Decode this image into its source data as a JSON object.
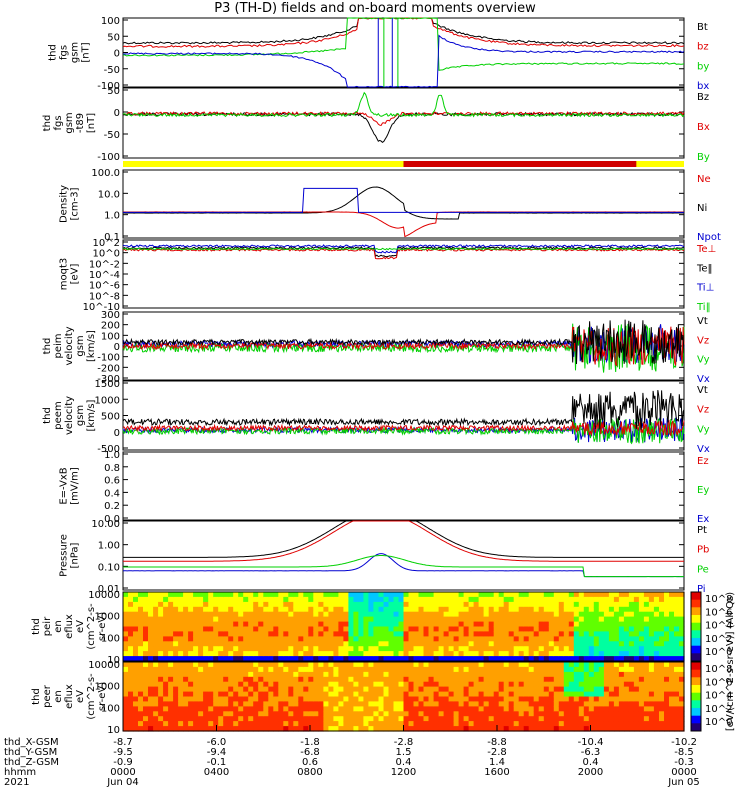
{
  "title": "P3 (TH-D) fields and on-board moments overview",
  "colors": {
    "black": "#000000",
    "red": "#e00000",
    "green": "#00d000",
    "blue": "#0000d0",
    "yellow": "#ffff00",
    "darkred": "#d00000"
  },
  "chart_data": [
    {
      "type": "line",
      "panel": "fgs_gsm",
      "ylabel": [
        "thd",
        "fgs",
        "gsm",
        "[nT]"
      ],
      "yticks": [
        "100",
        "50",
        "0",
        "-50",
        "-100"
      ],
      "ylim": [
        -100,
        100
      ],
      "legend": [
        {
          "name": "Bt",
          "color": "#000000"
        },
        {
          "name": "bz",
          "color": "#e00000"
        },
        {
          "name": "by",
          "color": "#00d000"
        },
        {
          "name": "bx",
          "color": "#0000d0"
        }
      ]
    },
    {
      "type": "line",
      "panel": "fgs_gsm_t89",
      "ylabel": [
        "thd",
        "fgs",
        "gsm",
        "-t89",
        "[nT]"
      ],
      "yticks": [
        "50",
        "0",
        "-50",
        "-100"
      ],
      "ylim": [
        -125,
        75
      ],
      "legend": [
        {
          "name": "Bz",
          "color": "#000000"
        },
        {
          "name": "Bx",
          "color": "#e00000"
        },
        {
          "name": "By",
          "color": "#00d000"
        }
      ]
    },
    {
      "type": "line",
      "panel": "density",
      "ylabel": [
        "Density",
        "[cm-3]"
      ],
      "yticks": [
        "100.0",
        "10.0",
        "1.0",
        "0.1"
      ],
      "scale": "log",
      "legend": [
        {
          "name": "Ne",
          "color": "#e00000"
        },
        {
          "name": "Ni",
          "color": "#000000"
        },
        {
          "name": "Npot",
          "color": "#0000d0"
        }
      ]
    },
    {
      "type": "line",
      "panel": "temperature",
      "ylabel": [
        "moqt3",
        "[eV]"
      ],
      "yticks": [
        "10^2",
        "10^0",
        "10^-2",
        "10^-4",
        "10^-6",
        "10^-8",
        "10^-10"
      ],
      "scale": "log",
      "legend": [
        {
          "name": "Te⊥",
          "color": "#e00000"
        },
        {
          "name": "Te‖",
          "color": "#000000"
        },
        {
          "name": "Ti⊥",
          "color": "#0000d0"
        },
        {
          "name": "Ti‖",
          "color": "#00d000"
        }
      ]
    },
    {
      "type": "line",
      "panel": "peim_velocity",
      "ylabel": [
        "thd",
        "peim",
        "velocity",
        "gsm",
        "[km/s]"
      ],
      "yticks": [
        "300",
        "200",
        "100",
        "0",
        "-100",
        "-200",
        "-300"
      ],
      "ylim": [
        -300,
        300
      ],
      "legend": [
        {
          "name": "Vt",
          "color": "#000000"
        },
        {
          "name": "Vz",
          "color": "#e00000"
        },
        {
          "name": "Vy",
          "color": "#00d000"
        },
        {
          "name": "Vx",
          "color": "#0000d0"
        }
      ]
    },
    {
      "type": "line",
      "panel": "peem_velocity",
      "ylabel": [
        "thd",
        "peem",
        "velocity",
        "gsm",
        "[km/s]"
      ],
      "yticks": [
        "1500",
        "1000",
        "500",
        "0",
        "-500"
      ],
      "ylim": [
        -700,
        1500
      ],
      "legend": [
        {
          "name": "Vt",
          "color": "#000000"
        },
        {
          "name": "Vz",
          "color": "#e00000"
        },
        {
          "name": "Vy",
          "color": "#00d000"
        },
        {
          "name": "Vx",
          "color": "#0000d0"
        }
      ]
    },
    {
      "type": "line",
      "panel": "efield",
      "ylabel": [
        "E=-VxB",
        "[mV/m]"
      ],
      "yticks": [
        "1.0",
        "0.8",
        "0.6",
        "0.4",
        "0.2",
        "0.0"
      ],
      "ylim": [
        0,
        1
      ],
      "legend": [
        {
          "name": "Ez",
          "color": "#e00000"
        },
        {
          "name": "Ey",
          "color": "#00d000"
        },
        {
          "name": "Ex",
          "color": "#0000d0"
        }
      ]
    },
    {
      "type": "line",
      "panel": "pressure",
      "ylabel": [
        "Pressure",
        "[nPa]"
      ],
      "yticks": [
        "10.00",
        "1.00",
        "0.10",
        "0.01"
      ],
      "scale": "log",
      "legend": [
        {
          "name": "Pt",
          "color": "#000000"
        },
        {
          "name": "Pb",
          "color": "#e00000"
        },
        {
          "name": "Pe",
          "color": "#00d000"
        },
        {
          "name": "Pi",
          "color": "#0000d0"
        }
      ]
    },
    {
      "type": "heatmap",
      "panel": "peir_eflux",
      "ylabel": [
        "thd",
        "peir",
        "en",
        "eflux",
        "eV",
        "(cm^2-s-",
        "sr-eV)"
      ],
      "yticks": [
        "10000",
        "1000",
        "100",
        "10"
      ],
      "scale": "log"
    },
    {
      "type": "heatmap",
      "panel": "peer_eflux",
      "ylabel": [
        "thd",
        "peer",
        "en",
        "eflux",
        "eV",
        "(cm^2-s-",
        "sr-eV)"
      ],
      "yticks": [
        "10000",
        "1000",
        "100",
        "10"
      ],
      "scale": "log"
    }
  ],
  "colorbar": {
    "label": "[eV/(cm^2-s-sr-eV)] (All Qs)",
    "ticks": [
      "10^8",
      "10^6",
      "10^4",
      "10^2",
      "10^0"
    ]
  },
  "xaxis": {
    "rows": [
      {
        "name": "thd_X-GSM",
        "values": [
          "-8.7",
          "-6.0",
          "-1.8",
          "-2.8",
          "-8.8",
          "-10.4",
          "-10.2"
        ]
      },
      {
        "name": "thd_Y-GSM",
        "values": [
          "-9.5",
          "-9.4",
          "-6.8",
          "1.5",
          "-2.8",
          "-6.3",
          "-8.5"
        ]
      },
      {
        "name": "thd_Z-GSM",
        "values": [
          "-0.9",
          "-0.1",
          "0.6",
          "0.4",
          "1.4",
          "0.4",
          "-0.3"
        ]
      },
      {
        "name": "hhmm",
        "values": [
          "0000",
          "0400",
          "0800",
          "1200",
          "1600",
          "2000",
          "0000"
        ]
      }
    ],
    "year": "2021",
    "dates": [
      {
        "pos": 0,
        "text": "Jun 04"
      },
      {
        "pos": 6,
        "text": "Jun 05"
      }
    ]
  }
}
